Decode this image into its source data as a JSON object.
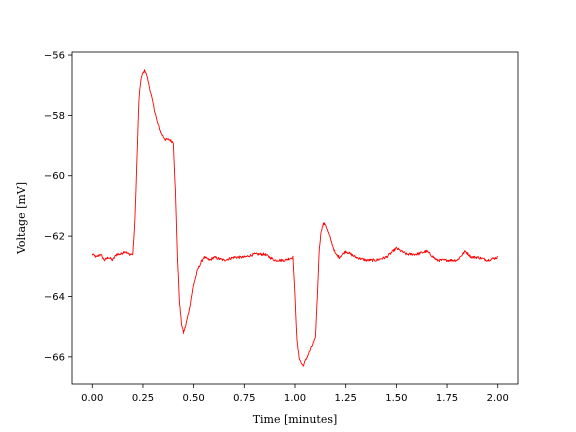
{
  "chart_data": {
    "type": "line",
    "title": "",
    "xlabel": "Time [minutes]",
    "ylabel": "Voltage [mV]",
    "xlim": [
      -0.1,
      2.1
    ],
    "ylim": [
      -66.9,
      -55.9
    ],
    "xticks": [
      0.0,
      0.25,
      0.5,
      0.75,
      1.0,
      1.25,
      1.5,
      1.75,
      2.0
    ],
    "xtick_labels": [
      "0.00",
      "0.25",
      "0.50",
      "0.75",
      "1.00",
      "1.25",
      "1.50",
      "1.75",
      "2.00"
    ],
    "yticks": [
      -66,
      -64,
      -62,
      -60,
      -58,
      -56
    ],
    "ytick_labels": [
      "−66",
      "−64",
      "−62",
      "−60",
      "−58",
      "−56"
    ],
    "grid": false,
    "legend": "none",
    "series": [
      {
        "color": "#ff0000",
        "x": [
          0.0,
          0.02,
          0.04,
          0.06,
          0.08,
          0.1,
          0.12,
          0.14,
          0.16,
          0.18,
          0.2,
          0.21,
          0.22,
          0.23,
          0.24,
          0.25,
          0.26,
          0.27,
          0.28,
          0.3,
          0.32,
          0.34,
          0.36,
          0.38,
          0.4,
          0.41,
          0.42,
          0.43,
          0.44,
          0.45,
          0.46,
          0.48,
          0.5,
          0.52,
          0.55,
          0.58,
          0.6,
          0.65,
          0.7,
          0.75,
          0.8,
          0.85,
          0.9,
          0.95,
          0.99,
          1.0,
          1.01,
          1.02,
          1.03,
          1.04,
          1.06,
          1.08,
          1.1,
          1.11,
          1.12,
          1.13,
          1.14,
          1.15,
          1.17,
          1.2,
          1.22,
          1.25,
          1.3,
          1.35,
          1.4,
          1.45,
          1.5,
          1.55,
          1.6,
          1.65,
          1.7,
          1.75,
          1.8,
          1.84,
          1.87,
          1.9,
          1.95,
          2.0
        ],
        "y": [
          -62.6,
          -62.7,
          -62.6,
          -62.8,
          -62.7,
          -62.8,
          -62.6,
          -62.6,
          -62.5,
          -62.6,
          -62.6,
          -61.5,
          -59.5,
          -57.5,
          -56.8,
          -56.6,
          -56.5,
          -56.7,
          -57.0,
          -57.6,
          -58.2,
          -58.6,
          -58.8,
          -58.8,
          -58.9,
          -60.5,
          -62.7,
          -64.2,
          -64.9,
          -65.2,
          -65.0,
          -64.4,
          -63.6,
          -63.1,
          -62.7,
          -62.8,
          -62.7,
          -62.8,
          -62.7,
          -62.7,
          -62.6,
          -62.6,
          -62.8,
          -62.8,
          -62.7,
          -64.0,
          -65.5,
          -66.0,
          -66.2,
          -66.3,
          -66.0,
          -65.7,
          -65.4,
          -64.0,
          -62.4,
          -61.8,
          -61.6,
          -61.6,
          -62.0,
          -62.6,
          -62.7,
          -62.5,
          -62.7,
          -62.8,
          -62.8,
          -62.7,
          -62.4,
          -62.6,
          -62.6,
          -62.5,
          -62.8,
          -62.8,
          -62.8,
          -62.5,
          -62.7,
          -62.7,
          -62.8,
          -62.7
        ]
      }
    ]
  }
}
